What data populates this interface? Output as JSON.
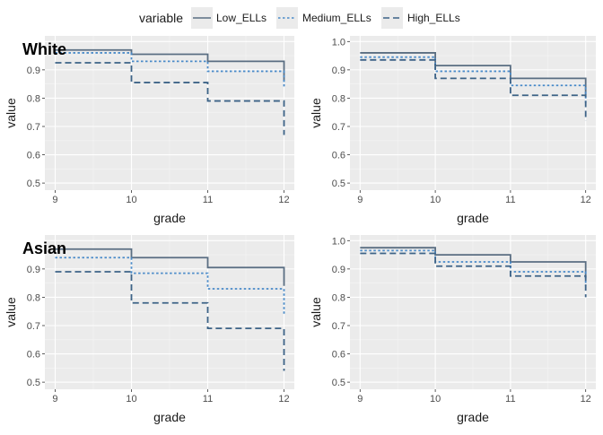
{
  "legend": {
    "title": "variable",
    "items": [
      {
        "label": "Low_ELLs",
        "color": "#5a6e82",
        "dash": "solid"
      },
      {
        "label": "Medium_ELLs",
        "color": "#4a8bc9",
        "dash": "dotted"
      },
      {
        "label": "High_ELLs",
        "color": "#3d6387",
        "dash": "dashed"
      }
    ]
  },
  "chart_data": [
    {
      "type": "line",
      "step": true,
      "title": "White",
      "xlabel": "grade",
      "ylabel": "value",
      "xlim": [
        9,
        12
      ],
      "ylim": [
        0.5,
        1.0
      ],
      "x_ticks": [
        9,
        10,
        11,
        12
      ],
      "y_ticks": [
        0.5,
        0.6,
        0.7,
        0.8,
        0.9
      ],
      "grid": true,
      "series": [
        {
          "name": "Low_ELLs",
          "x": [
            9,
            10,
            11,
            12
          ],
          "values": [
            0.97,
            0.955,
            0.93,
            0.86
          ]
        },
        {
          "name": "Medium_ELLs",
          "x": [
            9,
            10,
            11,
            12
          ],
          "values": [
            0.96,
            0.93,
            0.895,
            0.84
          ]
        },
        {
          "name": "High_ELLs",
          "x": [
            9,
            10,
            11,
            12
          ],
          "values": [
            0.925,
            0.855,
            0.79,
            0.67
          ]
        }
      ]
    },
    {
      "type": "line",
      "step": true,
      "title": "",
      "xlabel": "grade",
      "ylabel": "value",
      "xlim": [
        9,
        12
      ],
      "ylim": [
        0.5,
        1.0
      ],
      "x_ticks": [
        9,
        10,
        11,
        12
      ],
      "y_ticks": [
        0.5,
        0.6,
        0.7,
        0.8,
        0.9,
        1.0
      ],
      "grid": true,
      "series": [
        {
          "name": "Low_ELLs",
          "x": [
            9,
            10,
            11,
            12
          ],
          "values": [
            0.96,
            0.915,
            0.87,
            0.81
          ]
        },
        {
          "name": "Medium_ELLs",
          "x": [
            9,
            10,
            11,
            12
          ],
          "values": [
            0.945,
            0.895,
            0.845,
            0.78
          ]
        },
        {
          "name": "High_ELLs",
          "x": [
            9,
            10,
            11,
            12
          ],
          "values": [
            0.935,
            0.87,
            0.81,
            0.72
          ]
        }
      ]
    },
    {
      "type": "line",
      "step": true,
      "title": "Asian",
      "xlabel": "grade",
      "ylabel": "value",
      "xlim": [
        9,
        12
      ],
      "ylim": [
        0.5,
        1.0
      ],
      "x_ticks": [
        9,
        10,
        11,
        12
      ],
      "y_ticks": [
        0.5,
        0.6,
        0.7,
        0.8,
        0.9
      ],
      "grid": true,
      "series": [
        {
          "name": "Low_ELLs",
          "x": [
            9,
            10,
            11,
            12
          ],
          "values": [
            0.97,
            0.94,
            0.905,
            0.84
          ]
        },
        {
          "name": "Medium_ELLs",
          "x": [
            9,
            10,
            11,
            12
          ],
          "values": [
            0.94,
            0.885,
            0.83,
            0.74
          ]
        },
        {
          "name": "High_ELLs",
          "x": [
            9,
            10,
            11,
            12
          ],
          "values": [
            0.89,
            0.78,
            0.69,
            0.54
          ]
        }
      ]
    },
    {
      "type": "line",
      "step": true,
      "title": "",
      "xlabel": "grade",
      "ylabel": "value",
      "xlim": [
        9,
        12
      ],
      "ylim": [
        0.5,
        1.0
      ],
      "x_ticks": [
        9,
        10,
        11,
        12
      ],
      "y_ticks": [
        0.5,
        0.6,
        0.7,
        0.8,
        0.9,
        1.0
      ],
      "grid": true,
      "series": [
        {
          "name": "Low_ELLs",
          "x": [
            9,
            10,
            11,
            12
          ],
          "values": [
            0.975,
            0.95,
            0.925,
            0.87
          ]
        },
        {
          "name": "Medium_ELLs",
          "x": [
            9,
            10,
            11,
            12
          ],
          "values": [
            0.965,
            0.925,
            0.89,
            0.84
          ]
        },
        {
          "name": "High_ELLs",
          "x": [
            9,
            10,
            11,
            12
          ],
          "values": [
            0.955,
            0.91,
            0.875,
            0.8
          ]
        }
      ]
    }
  ]
}
